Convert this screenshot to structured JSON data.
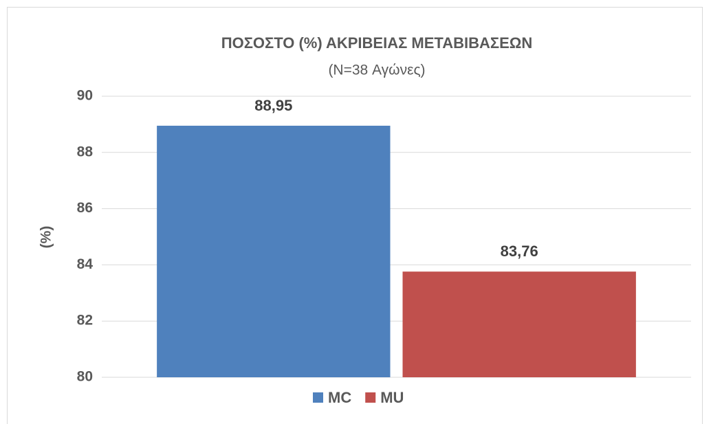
{
  "chart_data": {
    "type": "bar",
    "title": "ΠΟΣΟΣΤΟ (%) ΑΚΡΙΒΕΙΑΣ ΜΕΤΑΒΙΒΑΣΕΩΝ",
    "subtitle": "(N=38 Αγώνες)",
    "y_label": "(%)",
    "categories": [
      null
    ],
    "series": [
      {
        "name": "MC",
        "color": "#4f81bd",
        "values": [
          88.95
        ],
        "value_labels": [
          "88,95"
        ]
      },
      {
        "name": "MU",
        "color": "#c0504d",
        "values": [
          83.76
        ],
        "value_labels": [
          "83,76"
        ]
      }
    ],
    "ylim": [
      80,
      90
    ],
    "yticks": [
      80,
      82,
      84,
      86,
      88,
      90
    ],
    "grid": true,
    "legend": "bottom"
  }
}
